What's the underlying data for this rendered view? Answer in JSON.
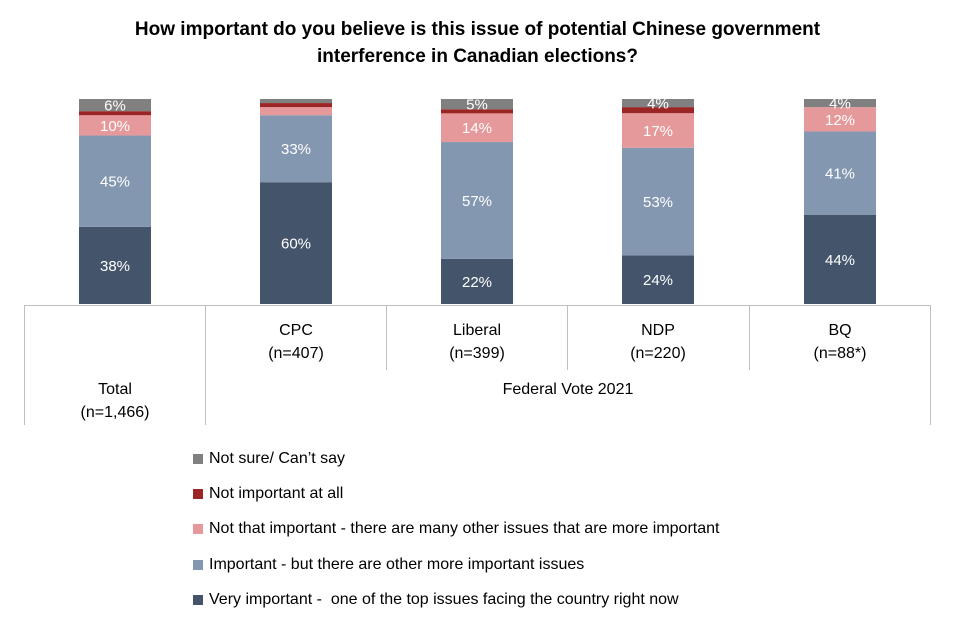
{
  "title_lines": [
    "How important do you believe is this issue of potential Chinese government",
    "interference in Canadian elections?"
  ],
  "chart_data": {
    "type": "bar",
    "stacked": true,
    "percent_stacked": true,
    "title": "How important do you believe is this issue of potential Chinese government interference in Canadian elections?",
    "categories": [
      {
        "name": "Total",
        "n": "(n=1,466)"
      },
      {
        "name": "CPC",
        "n": "(n=407)"
      },
      {
        "name": "Liberal",
        "n": "(n=399)"
      },
      {
        "name": "NDP",
        "n": "(n=220)"
      },
      {
        "name": "BQ",
        "n": "(n=88*)"
      }
    ],
    "group_label": "Federal Vote 2021",
    "series": [
      {
        "name": "Very important -  one of the top issues facing the country right now",
        "color": "#44546a",
        "values": [
          38,
          60,
          22,
          24,
          44
        ],
        "labels": [
          "38%",
          "60%",
          "22%",
          "24%",
          "44%"
        ]
      },
      {
        "name": "Important - but there are other more important issues",
        "color": "#8497b0",
        "values": [
          45,
          33,
          57,
          53,
          41
        ],
        "labels": [
          "45%",
          "33%",
          "57%",
          "53%",
          "41%"
        ]
      },
      {
        "name": "Not that important - there are many other issues that are more important",
        "color": "#e6999a",
        "values": [
          10,
          4,
          14,
          17,
          12
        ],
        "labels": [
          "10%",
          "",
          "14%",
          "17%",
          "12%"
        ]
      },
      {
        "name": "Not important at all",
        "color": "#9b2424",
        "values": [
          2,
          2,
          2,
          3,
          0
        ],
        "labels": [
          "",
          "",
          "",
          "",
          ""
        ]
      },
      {
        "name": "Not sure/ Can’t say",
        "color": "#808080",
        "values": [
          6,
          2,
          5,
          4,
          4
        ],
        "labels": [
          "6%",
          "",
          "5%",
          "4%",
          "4%"
        ]
      }
    ],
    "ylim": [
      0,
      100
    ],
    "legend_position": "bottom",
    "legend_order": [
      "Not sure/ Can’t say",
      "Not important at all",
      "Not that important - there are many other issues that are more important",
      "Important - but there are other more important issues",
      "Very important -  one of the top issues facing the country right now"
    ]
  }
}
